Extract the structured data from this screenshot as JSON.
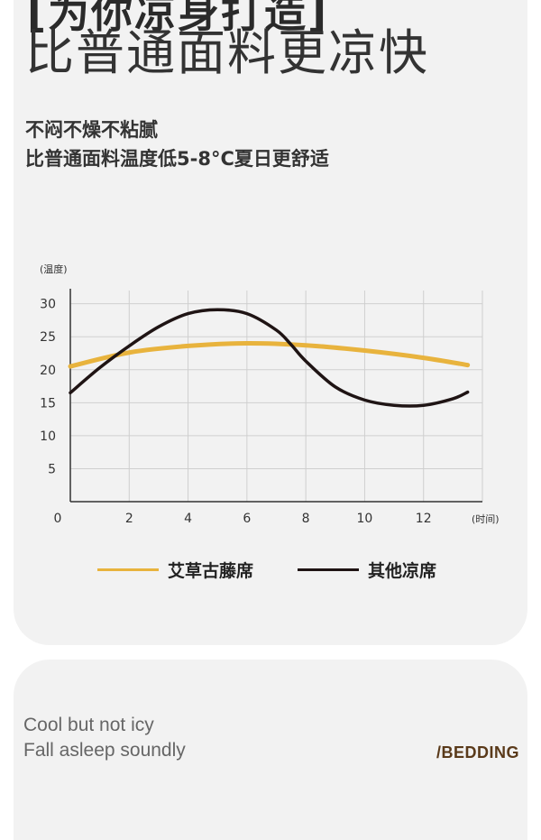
{
  "header": {
    "cut_title": "[为你凉身打造]",
    "title": "比普通面料更凉快",
    "subtitle_1": "不闷不燥不粘腻",
    "subtitle_2": "比普通面料温度低5-8°C夏日更舒适"
  },
  "chart_data": {
    "type": "line",
    "ylabel": "(温度)",
    "xlabel": "(时间)",
    "x_ticks": [
      0,
      2,
      4,
      6,
      8,
      10,
      12
    ],
    "y_ticks": [
      5,
      10,
      15,
      20,
      25,
      30
    ],
    "xlim": [
      0,
      14
    ],
    "ylim": [
      0,
      32
    ],
    "grid": true,
    "legend_position": "bottom",
    "series": [
      {
        "name": "艾草古藤席",
        "color": "#e8b33d",
        "x": [
          0,
          2,
          4,
          6,
          8,
          10,
          12,
          13.5
        ],
        "y": [
          20.5,
          22.6,
          23.6,
          24.0,
          23.7,
          22.9,
          21.8,
          20.7
        ]
      },
      {
        "name": "其他凉席",
        "color": "#1f1414",
        "x": [
          0,
          1,
          2,
          3,
          4,
          5,
          6,
          7,
          7.5,
          8,
          9,
          10,
          11,
          12,
          13,
          13.5
        ],
        "y": [
          16.5,
          20.3,
          23.6,
          26.5,
          28.5,
          29.1,
          28.5,
          26.0,
          23.8,
          21.3,
          17.4,
          15.4,
          14.6,
          14.6,
          15.6,
          16.6
        ]
      }
    ]
  },
  "bottom": {
    "en_line_1": "Cool but not icy",
    "en_line_2": "Fall asleep soundly",
    "brand": "/BEDDING"
  }
}
